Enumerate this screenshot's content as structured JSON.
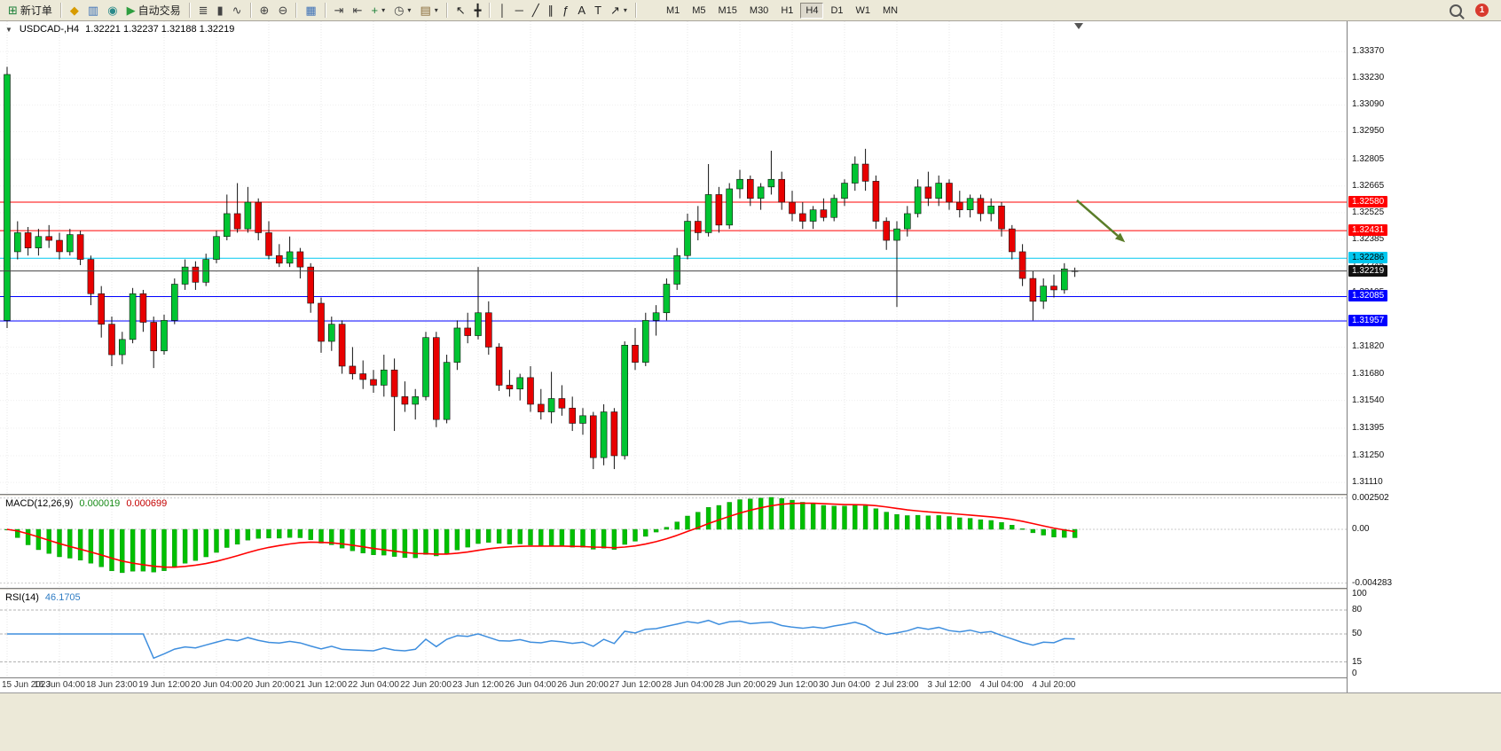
{
  "toolbar": {
    "items": [
      {
        "name": "new-order-button",
        "glyph": "⊞",
        "color": "#1a7f37",
        "label": "新订单"
      },
      {
        "type": "sep"
      },
      {
        "name": "market-watch-button",
        "glyph": "◆",
        "color": "#d79b00"
      },
      {
        "name": "data-window-button",
        "glyph": "▥",
        "color": "#3b6fb6"
      },
      {
        "name": "navigator-button",
        "glyph": "◉",
        "color": "#2b8a8a"
      },
      {
        "name": "auto-trading-button",
        "glyph": "▶",
        "color": "#2e9e3f",
        "label": "自动交易"
      },
      {
        "type": "sep"
      },
      {
        "name": "bars-chart-button",
        "glyph": "≣",
        "color": "#444444"
      },
      {
        "name": "candles-chart-button",
        "glyph": "▮",
        "color": "#444444"
      },
      {
        "name": "line-chart-button",
        "glyph": "∿",
        "color": "#444444"
      },
      {
        "type": "sep"
      },
      {
        "name": "zoom-in-button",
        "glyph": "⊕",
        "color": "#444444"
      },
      {
        "name": "zoom-out-button",
        "glyph": "⊖",
        "color": "#444444"
      },
      {
        "type": "sep"
      },
      {
        "name": "tile-windows-button",
        "glyph": "▦",
        "color": "#3b6fb6"
      },
      {
        "type": "sep"
      },
      {
        "name": "auto-scroll-button",
        "glyph": "⇥",
        "color": "#444444"
      },
      {
        "name": "chart-shift-button",
        "glyph": "⇤",
        "color": "#444444"
      },
      {
        "name": "indicators-button",
        "glyph": "+",
        "color": "#1a7f37",
        "caret": true
      },
      {
        "name": "periods-button",
        "glyph": "◷",
        "color": "#444444",
        "caret": true
      },
      {
        "name": "templates-button",
        "glyph": "▤",
        "color": "#8a6d3b",
        "caret": true
      },
      {
        "type": "sep"
      },
      {
        "name": "cursor-button",
        "glyph": "↖",
        "color": "#222222"
      },
      {
        "name": "crosshair-button",
        "glyph": "╋",
        "color": "#222222"
      },
      {
        "type": "sep"
      },
      {
        "name": "vertical-line-button",
        "glyph": "│",
        "color": "#222222"
      },
      {
        "name": "horizontal-line-button",
        "glyph": "─",
        "color": "#222222"
      },
      {
        "name": "trendline-button",
        "glyph": "╱",
        "color": "#222222"
      },
      {
        "name": "channel-button",
        "glyph": "∥",
        "color": "#222222"
      },
      {
        "name": "fibonacci-button",
        "glyph": "ƒ",
        "color": "#222222"
      },
      {
        "name": "text-button",
        "glyph": "A",
        "color": "#222222"
      },
      {
        "name": "label-button",
        "glyph": "T",
        "color": "#222222"
      },
      {
        "name": "arrows-button",
        "glyph": "↗",
        "color": "#222222",
        "caret": true
      },
      {
        "type": "sep"
      }
    ],
    "timeframes": [
      {
        "label": "M1"
      },
      {
        "label": "M5"
      },
      {
        "label": "M15"
      },
      {
        "label": "M30"
      },
      {
        "label": "H1"
      },
      {
        "label": "H4",
        "active": true
      },
      {
        "label": "D1"
      },
      {
        "label": "W1"
      },
      {
        "label": "MN"
      }
    ],
    "notification_count": "1"
  },
  "chart": {
    "title": "USDCAD-,H4",
    "ohlc_text": "1.32221 1.32237 1.32188 1.32219",
    "one_click_glyph": "▼"
  },
  "chart_data": {
    "type": "candlestick",
    "symbol": "USDCAD-",
    "timeframe": "H4",
    "up_color": "#00c432",
    "down_color": "#e80000",
    "wick_color": "#111111",
    "y_range": [
      1.3105,
      1.33529
    ],
    "y_ticks": [
      1.3337,
      1.3323,
      1.3309,
      1.3295,
      1.32805,
      1.32665,
      1.32525,
      1.32385,
      1.32245,
      1.32105,
      1.31965,
      1.3182,
      1.3168,
      1.3154,
      1.31395,
      1.3125,
      1.3111
    ],
    "x_label_step": 5,
    "x_labels": [
      "15 Jun 2023",
      "16 Jun 04:00",
      "18 Jun 23:00",
      "19 Jun 12:00",
      "20 Jun 04:00",
      "20 Jun 20:00",
      "21 Jun 12:00",
      "22 Jun 04:00",
      "22 Jun 20:00",
      "23 Jun 12:00",
      "26 Jun 04:00",
      "26 Jun 20:00",
      "27 Jun 12:00",
      "28 Jun 04:00",
      "28 Jun 20:00",
      "29 Jun 12:00",
      "30 Jun 04:00",
      "2 Jul 23:00",
      "3 Jul 12:00",
      "4 Jul 04:00",
      "4 Jul 20:00"
    ],
    "candles": [
      [
        1.3196,
        1.3329,
        1.3192,
        1.3325
      ],
      [
        1.3232,
        1.3248,
        1.3228,
        1.3242
      ],
      [
        1.3242,
        1.3245,
        1.323,
        1.3234
      ],
      [
        1.3234,
        1.3244,
        1.323,
        1.324
      ],
      [
        1.324,
        1.3246,
        1.3234,
        1.3238
      ],
      [
        1.3238,
        1.3242,
        1.3228,
        1.3232
      ],
      [
        1.3232,
        1.3244,
        1.323,
        1.3241
      ],
      [
        1.3241,
        1.3243,
        1.3225,
        1.3228
      ],
      [
        1.3228,
        1.323,
        1.3204,
        1.321
      ],
      [
        1.321,
        1.3214,
        1.3187,
        1.3194
      ],
      [
        1.3194,
        1.3198,
        1.3172,
        1.3178
      ],
      [
        1.3178,
        1.319,
        1.3173,
        1.3186
      ],
      [
        1.3186,
        1.3213,
        1.3184,
        1.321
      ],
      [
        1.321,
        1.3212,
        1.319,
        1.3195
      ],
      [
        1.3195,
        1.3198,
        1.3171,
        1.318
      ],
      [
        1.318,
        1.3199,
        1.3178,
        1.3196
      ],
      [
        1.3196,
        1.3218,
        1.3194,
        1.3215
      ],
      [
        1.3215,
        1.3228,
        1.3212,
        1.3224
      ],
      [
        1.3224,
        1.3227,
        1.3212,
        1.3216
      ],
      [
        1.3216,
        1.3231,
        1.3214,
        1.3228
      ],
      [
        1.3228,
        1.3243,
        1.3226,
        1.324
      ],
      [
        1.324,
        1.3262,
        1.3238,
        1.3252
      ],
      [
        1.3252,
        1.3268,
        1.3242,
        1.3244
      ],
      [
        1.3244,
        1.3266,
        1.3242,
        1.3258
      ],
      [
        1.3258,
        1.326,
        1.3238,
        1.3242
      ],
      [
        1.3242,
        1.3248,
        1.3228,
        1.323
      ],
      [
        1.323,
        1.3236,
        1.3224,
        1.3226
      ],
      [
        1.3226,
        1.324,
        1.3224,
        1.3232
      ],
      [
        1.3232,
        1.3234,
        1.3218,
        1.3224
      ],
      [
        1.3224,
        1.3226,
        1.32,
        1.3205
      ],
      [
        1.3205,
        1.3208,
        1.3179,
        1.3185
      ],
      [
        1.3185,
        1.3198,
        1.318,
        1.3194
      ],
      [
        1.3194,
        1.3196,
        1.3168,
        1.3172
      ],
      [
        1.3172,
        1.3182,
        1.3165,
        1.3168
      ],
      [
        1.3168,
        1.3175,
        1.316,
        1.3165
      ],
      [
        1.3165,
        1.317,
        1.3158,
        1.3162
      ],
      [
        1.3162,
        1.3178,
        1.3156,
        1.317
      ],
      [
        1.317,
        1.3176,
        1.3138,
        1.3156
      ],
      [
        1.3156,
        1.3164,
        1.3148,
        1.3152
      ],
      [
        1.3152,
        1.316,
        1.3144,
        1.3156
      ],
      [
        1.3156,
        1.319,
        1.3154,
        1.3187
      ],
      [
        1.3187,
        1.319,
        1.314,
        1.3144
      ],
      [
        1.3144,
        1.3178,
        1.3142,
        1.3174
      ],
      [
        1.3174,
        1.3196,
        1.317,
        1.3192
      ],
      [
        1.3192,
        1.32,
        1.3184,
        1.3188
      ],
      [
        1.3188,
        1.3224,
        1.3186,
        1.32
      ],
      [
        1.32,
        1.3206,
        1.3178,
        1.3182
      ],
      [
        1.3182,
        1.3184,
        1.3159,
        1.3162
      ],
      [
        1.3162,
        1.317,
        1.3156,
        1.316
      ],
      [
        1.316,
        1.3168,
        1.3154,
        1.3166
      ],
      [
        1.3166,
        1.3172,
        1.3148,
        1.3152
      ],
      [
        1.3152,
        1.316,
        1.3144,
        1.3148
      ],
      [
        1.3148,
        1.3169,
        1.3142,
        1.3155
      ],
      [
        1.3155,
        1.3162,
        1.3146,
        1.315
      ],
      [
        1.315,
        1.3156,
        1.3138,
        1.3142
      ],
      [
        1.3142,
        1.315,
        1.3136,
        1.3146
      ],
      [
        1.3146,
        1.3148,
        1.3118,
        1.3124
      ],
      [
        1.3124,
        1.3152,
        1.312,
        1.3148
      ],
      [
        1.3148,
        1.315,
        1.3118,
        1.3125
      ],
      [
        1.3125,
        1.3185,
        1.3123,
        1.3183
      ],
      [
        1.3183,
        1.3192,
        1.317,
        1.3174
      ],
      [
        1.3174,
        1.32,
        1.3172,
        1.3196
      ],
      [
        1.3196,
        1.3204,
        1.3188,
        1.32
      ],
      [
        1.32,
        1.3218,
        1.3196,
        1.3215
      ],
      [
        1.3215,
        1.3234,
        1.3212,
        1.323
      ],
      [
        1.323,
        1.3252,
        1.3228,
        1.3248
      ],
      [
        1.3248,
        1.3256,
        1.3238,
        1.3242
      ],
      [
        1.3242,
        1.3278,
        1.324,
        1.3262
      ],
      [
        1.3262,
        1.3266,
        1.3242,
        1.3246
      ],
      [
        1.3246,
        1.3268,
        1.3244,
        1.3265
      ],
      [
        1.3265,
        1.3275,
        1.326,
        1.327
      ],
      [
        1.327,
        1.3272,
        1.3256,
        1.326
      ],
      [
        1.326,
        1.3268,
        1.3254,
        1.3266
      ],
      [
        1.3266,
        1.3285,
        1.3262,
        1.327
      ],
      [
        1.327,
        1.3274,
        1.3254,
        1.3258
      ],
      [
        1.3258,
        1.3264,
        1.3248,
        1.3252
      ],
      [
        1.3252,
        1.3258,
        1.3244,
        1.3248
      ],
      [
        1.3248,
        1.3256,
        1.3244,
        1.3254
      ],
      [
        1.3254,
        1.326,
        1.3248,
        1.325
      ],
      [
        1.325,
        1.3262,
        1.3248,
        1.326
      ],
      [
        1.326,
        1.327,
        1.3256,
        1.3268
      ],
      [
        1.3268,
        1.3282,
        1.3264,
        1.3278
      ],
      [
        1.3278,
        1.3286,
        1.3264,
        1.3269
      ],
      [
        1.3269,
        1.3272,
        1.3244,
        1.3248
      ],
      [
        1.3248,
        1.325,
        1.3233,
        1.3238
      ],
      [
        1.3238,
        1.3248,
        1.3203,
        1.3244
      ],
      [
        1.3244,
        1.3256,
        1.324,
        1.3252
      ],
      [
        1.3252,
        1.327,
        1.325,
        1.3266
      ],
      [
        1.3266,
        1.3274,
        1.3256,
        1.326
      ],
      [
        1.326,
        1.3272,
        1.3256,
        1.3268
      ],
      [
        1.3268,
        1.327,
        1.3254,
        1.3258
      ],
      [
        1.3258,
        1.3264,
        1.325,
        1.3254
      ],
      [
        1.3254,
        1.3262,
        1.325,
        1.326
      ],
      [
        1.326,
        1.3262,
        1.3248,
        1.3252
      ],
      [
        1.3252,
        1.326,
        1.3248,
        1.3256
      ],
      [
        1.3256,
        1.3258,
        1.324,
        1.3244
      ],
      [
        1.3244,
        1.3246,
        1.3228,
        1.3232
      ],
      [
        1.3232,
        1.3236,
        1.3214,
        1.3218
      ],
      [
        1.3218,
        1.3222,
        1.3196,
        1.3206
      ],
      [
        1.3206,
        1.3218,
        1.3202,
        1.3214
      ],
      [
        1.3214,
        1.322,
        1.3208,
        1.3212
      ],
      [
        1.3212,
        1.3226,
        1.321,
        1.3223
      ],
      [
        1.32221,
        1.32237,
        1.32188,
        1.32219
      ]
    ],
    "hlines": [
      {
        "price": 1.3258,
        "label": "1.32580",
        "color": "#ff0000",
        "label_fg": "#ffffff"
      },
      {
        "price": 1.32431,
        "label": "1.32431",
        "color": "#ff0000",
        "label_fg": "#ffffff"
      },
      {
        "price": 1.32286,
        "label": "1.32286",
        "color": "#00c8f0",
        "label_fg": "#000000"
      },
      {
        "price": 1.32085,
        "label": "1.32085",
        "color": "#0000ff",
        "label_fg": "#ffffff"
      },
      {
        "price": 1.31957,
        "label": "1.31957",
        "color": "#0000ff",
        "label_fg": "#ffffff"
      }
    ],
    "bid": {
      "price": 1.32219,
      "label": "1.32219"
    },
    "arrow": {
      "from_bar": 102.2,
      "from_price": 1.3259,
      "to_bar": 106.8,
      "to_price": 1.3237,
      "color": "#5a7d29"
    },
    "indicators": [
      {
        "name": "MACD",
        "label": "MACD(12,26,9)",
        "params": [
          12,
          26,
          9
        ],
        "values": [
          "0.000019",
          "0.000699"
        ],
        "ticks": [
          {
            "value": 0.002502,
            "label": "0.002502"
          },
          {
            "value": 0,
            "label": "0.00"
          },
          {
            "value": -0.004283,
            "label": "-0.004283"
          }
        ],
        "v_range": [
          -0.004666,
          0.002687
        ],
        "histogram_color": "#00c000",
        "signal_color": "#ff0000"
      },
      {
        "name": "RSI",
        "label": "RSI(14)",
        "params": [
          14
        ],
        "values": [
          "46.1705"
        ],
        "ticks": [
          {
            "value": 100,
            "label": "100"
          },
          {
            "value": 80,
            "label": "80"
          },
          {
            "value": 50,
            "label": "50"
          },
          {
            "value": 15,
            "label": "15"
          },
          {
            "value": 0,
            "label": "0"
          }
        ],
        "levels": [
          80,
          50,
          15
        ],
        "line_color": "#3e8ede"
      }
    ]
  }
}
